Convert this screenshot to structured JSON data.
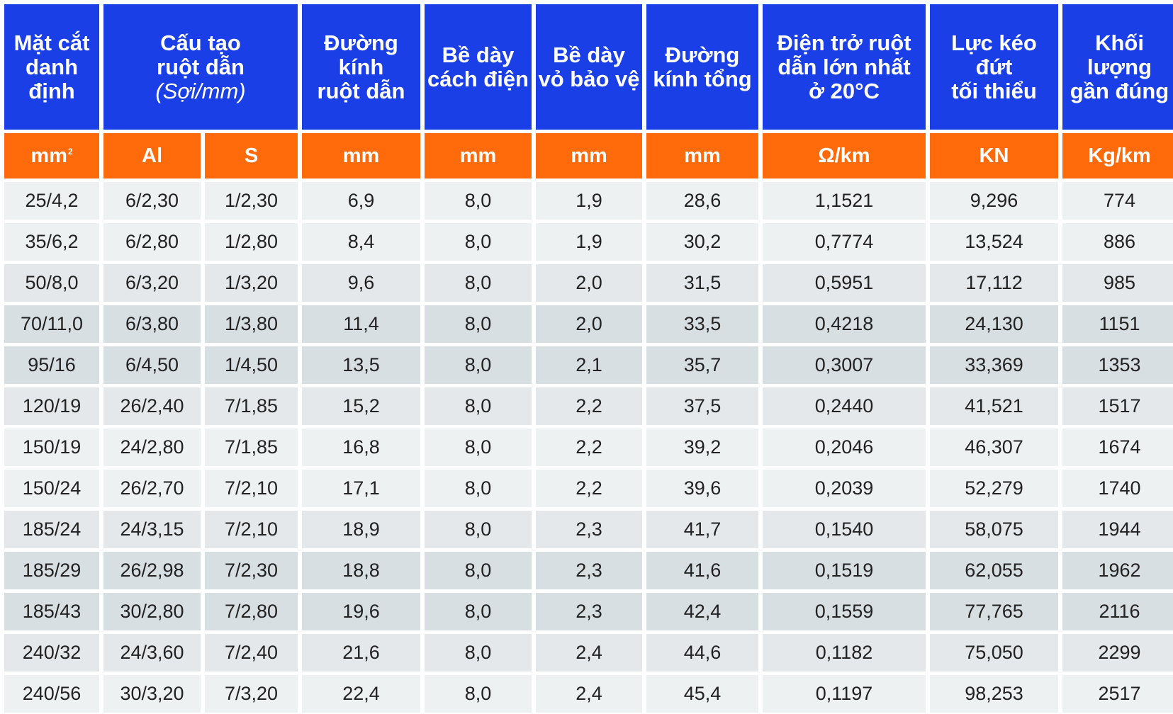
{
  "header": {
    "col1": [
      "Mặt cắt",
      "danh",
      "định"
    ],
    "col2": [
      "Cấu tạo",
      "ruột dẫn",
      "(Sợi/mm)"
    ],
    "col3": [
      "Đường",
      "kính",
      "ruột dẫn"
    ],
    "col4": [
      "Bề dày",
      "cách điện"
    ],
    "col5": [
      "Bề dày",
      "vỏ bảo vệ"
    ],
    "col6": [
      "Đường",
      "kính tổng"
    ],
    "col7": [
      "Điện trở ruột",
      "dẫn lớn nhất",
      "ở 20°C"
    ],
    "col8": [
      "Lực kéo đứt",
      "tối thiểu"
    ],
    "col9": [
      "Khối",
      "lượng",
      "gần đúng"
    ]
  },
  "units": {
    "mm2": "mm",
    "mm2_sup": "2",
    "al": "Al",
    "s": "S",
    "diam": "mm",
    "ins": "mm",
    "sheath": "mm",
    "total": "mm",
    "res": "Ω/km",
    "force": "KN",
    "mass": "Kg/km"
  },
  "rows": [
    [
      "25/4,2",
      "6/2,30",
      "1/2,30",
      "6,9",
      "8,0",
      "1,9",
      "28,6",
      "1,1521",
      "9,296",
      "774"
    ],
    [
      "35/6,2",
      "6/2,80",
      "1/2,80",
      "8,4",
      "8,0",
      "1,9",
      "30,2",
      "0,7774",
      "13,524",
      "886"
    ],
    [
      "50/8,0",
      "6/3,20",
      "1/3,20",
      "9,6",
      "8,0",
      "2,0",
      "31,5",
      "0,5951",
      "17,112",
      "985"
    ],
    [
      "70/11,0",
      "6/3,80",
      "1/3,80",
      "11,4",
      "8,0",
      "2,0",
      "33,5",
      "0,4218",
      "24,130",
      "1151"
    ],
    [
      "95/16",
      "6/4,50",
      "1/4,50",
      "13,5",
      "8,0",
      "2,1",
      "35,7",
      "0,3007",
      "33,369",
      "1353"
    ],
    [
      "120/19",
      "26/2,40",
      "7/1,85",
      "15,2",
      "8,0",
      "2,2",
      "37,5",
      "0,2440",
      "41,521",
      "1517"
    ],
    [
      "150/19",
      "24/2,80",
      "7/1,85",
      "16,8",
      "8,0",
      "2,2",
      "39,2",
      "0,2046",
      "46,307",
      "1674"
    ],
    [
      "150/24",
      "26/2,70",
      "7/2,10",
      "17,1",
      "8,0",
      "2,2",
      "39,6",
      "0,2039",
      "52,279",
      "1740"
    ],
    [
      "185/24",
      "24/3,15",
      "7/2,10",
      "18,9",
      "8,0",
      "2,3",
      "41,7",
      "0,1540",
      "58,075",
      "1944"
    ],
    [
      "185/29",
      "26/2,98",
      "7/2,30",
      "18,8",
      "8,0",
      "2,3",
      "41,6",
      "0,1519",
      "62,055",
      "1962"
    ],
    [
      "185/43",
      "30/2,80",
      "7/2,80",
      "19,6",
      "8,0",
      "2,3",
      "42,4",
      "0,1559",
      "77,765",
      "2116"
    ],
    [
      "240/32",
      "24/3,60",
      "7/2,40",
      "21,6",
      "8,0",
      "2,4",
      "44,6",
      "0,1182",
      "75,050",
      "2299"
    ],
    [
      "240/56",
      "30/3,20",
      "7/3,20",
      "22,4",
      "8,0",
      "2,4",
      "45,4",
      "0,1197",
      "98,253",
      "2517"
    ]
  ],
  "colors": {
    "header_blue": "#1a3fe6",
    "unit_orange": "#ff6a0a",
    "row_light": "#eef1f2",
    "row_mid": "#e4e8ea",
    "row_dark": "#d8dfe2"
  }
}
